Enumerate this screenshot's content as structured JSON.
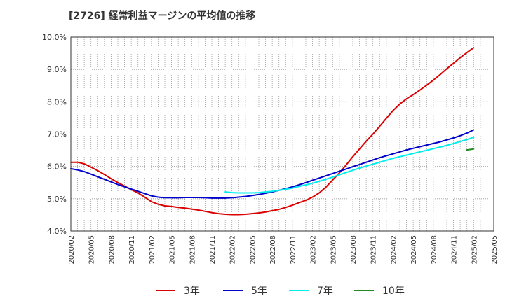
{
  "chart_data": {
    "type": "line",
    "title": "[2726]  経常利益マージンの平均値の推移",
    "xlabel": "",
    "ylabel": "",
    "ylim": [
      4.0,
      10.0
    ],
    "yticks": [
      "4.0%",
      "5.0%",
      "6.0%",
      "7.0%",
      "8.0%",
      "9.0%",
      "10.0%"
    ],
    "xticks": [
      "2020/02",
      "2020/05",
      "2020/08",
      "2020/11",
      "2021/02",
      "2021/05",
      "2021/08",
      "2021/11",
      "2022/02",
      "2022/05",
      "2022/08",
      "2022/11",
      "2023/02",
      "2023/05",
      "2023/08",
      "2023/11",
      "2024/02",
      "2024/05",
      "2024/08",
      "2024/11",
      "2025/02",
      "2025/05"
    ],
    "grid": true,
    "legend_position": "bottom",
    "series": [
      {
        "name": "3年",
        "color": "#dd0000",
        "points": [
          [
            "2020/02",
            6.13
          ],
          [
            "2020/03",
            6.13
          ],
          [
            "2020/04",
            6.08
          ],
          [
            "2020/05",
            5.98
          ],
          [
            "2020/06",
            5.87
          ],
          [
            "2020/07",
            5.75
          ],
          [
            "2020/08",
            5.62
          ],
          [
            "2020/09",
            5.5
          ],
          [
            "2020/10",
            5.39
          ],
          [
            "2020/11",
            5.28
          ],
          [
            "2020/12",
            5.18
          ],
          [
            "2021/01",
            5.05
          ],
          [
            "2021/02",
            4.91
          ],
          [
            "2021/03",
            4.83
          ],
          [
            "2021/04",
            4.78
          ],
          [
            "2021/05",
            4.76
          ],
          [
            "2021/06",
            4.73
          ],
          [
            "2021/07",
            4.71
          ],
          [
            "2021/08",
            4.68
          ],
          [
            "2021/09",
            4.65
          ],
          [
            "2021/10",
            4.61
          ],
          [
            "2021/11",
            4.57
          ],
          [
            "2021/12",
            4.54
          ],
          [
            "2022/01",
            4.52
          ],
          [
            "2022/02",
            4.51
          ],
          [
            "2022/03",
            4.51
          ],
          [
            "2022/04",
            4.52
          ],
          [
            "2022/05",
            4.54
          ],
          [
            "2022/06",
            4.56
          ],
          [
            "2022/07",
            4.59
          ],
          [
            "2022/08",
            4.63
          ],
          [
            "2022/09",
            4.67
          ],
          [
            "2022/10",
            4.73
          ],
          [
            "2022/11",
            4.8
          ],
          [
            "2022/12",
            4.88
          ],
          [
            "2023/01",
            4.95
          ],
          [
            "2023/02",
            5.05
          ],
          [
            "2023/03",
            5.18
          ],
          [
            "2023/04",
            5.36
          ],
          [
            "2023/05",
            5.58
          ],
          [
            "2023/06",
            5.8
          ],
          [
            "2023/07",
            6.04
          ],
          [
            "2023/08",
            6.3
          ],
          [
            "2023/09",
            6.54
          ],
          [
            "2023/10",
            6.78
          ],
          [
            "2023/11",
            7.0
          ],
          [
            "2023/12",
            7.24
          ],
          [
            "2024/01",
            7.49
          ],
          [
            "2024/02",
            7.73
          ],
          [
            "2024/03",
            7.93
          ],
          [
            "2024/04",
            8.09
          ],
          [
            "2024/05",
            8.22
          ],
          [
            "2024/06",
            8.36
          ],
          [
            "2024/07",
            8.51
          ],
          [
            "2024/08",
            8.67
          ],
          [
            "2024/09",
            8.84
          ],
          [
            "2024/10",
            9.02
          ],
          [
            "2024/11",
            9.19
          ],
          [
            "2024/12",
            9.36
          ],
          [
            "2025/01",
            9.52
          ],
          [
            "2025/02",
            9.67
          ]
        ]
      },
      {
        "name": "5年",
        "color": "#0000cc",
        "points": [
          [
            "2020/02",
            5.93
          ],
          [
            "2020/03",
            5.89
          ],
          [
            "2020/04",
            5.84
          ],
          [
            "2020/05",
            5.76
          ],
          [
            "2020/06",
            5.68
          ],
          [
            "2020/07",
            5.6
          ],
          [
            "2020/08",
            5.52
          ],
          [
            "2020/09",
            5.44
          ],
          [
            "2020/10",
            5.37
          ],
          [
            "2020/11",
            5.3
          ],
          [
            "2020/12",
            5.23
          ],
          [
            "2021/01",
            5.16
          ],
          [
            "2021/02",
            5.09
          ],
          [
            "2021/03",
            5.05
          ],
          [
            "2021/04",
            5.03
          ],
          [
            "2021/05",
            5.03
          ],
          [
            "2021/06",
            5.03
          ],
          [
            "2021/07",
            5.04
          ],
          [
            "2021/08",
            5.04
          ],
          [
            "2021/09",
            5.04
          ],
          [
            "2021/10",
            5.03
          ],
          [
            "2021/11",
            5.02
          ],
          [
            "2021/12",
            5.02
          ],
          [
            "2022/01",
            5.02
          ],
          [
            "2022/02",
            5.03
          ],
          [
            "2022/03",
            5.05
          ],
          [
            "2022/04",
            5.07
          ],
          [
            "2022/05",
            5.1
          ],
          [
            "2022/06",
            5.13
          ],
          [
            "2022/07",
            5.17
          ],
          [
            "2022/08",
            5.21
          ],
          [
            "2022/09",
            5.26
          ],
          [
            "2022/10",
            5.31
          ],
          [
            "2022/11",
            5.37
          ],
          [
            "2022/12",
            5.43
          ],
          [
            "2023/01",
            5.5
          ],
          [
            "2023/02",
            5.57
          ],
          [
            "2023/03",
            5.64
          ],
          [
            "2023/04",
            5.71
          ],
          [
            "2023/05",
            5.78
          ],
          [
            "2023/06",
            5.85
          ],
          [
            "2023/07",
            5.92
          ],
          [
            "2023/08",
            5.99
          ],
          [
            "2023/09",
            6.06
          ],
          [
            "2023/10",
            6.13
          ],
          [
            "2023/11",
            6.2
          ],
          [
            "2023/12",
            6.27
          ],
          [
            "2024/01",
            6.33
          ],
          [
            "2024/02",
            6.39
          ],
          [
            "2024/03",
            6.45
          ],
          [
            "2024/04",
            6.51
          ],
          [
            "2024/05",
            6.56
          ],
          [
            "2024/06",
            6.61
          ],
          [
            "2024/07",
            6.66
          ],
          [
            "2024/08",
            6.71
          ],
          [
            "2024/09",
            6.76
          ],
          [
            "2024/10",
            6.82
          ],
          [
            "2024/11",
            6.88
          ],
          [
            "2024/12",
            6.95
          ],
          [
            "2025/01",
            7.03
          ],
          [
            "2025/02",
            7.13
          ]
        ]
      },
      {
        "name": "7年",
        "color": "#00eeee",
        "points": [
          [
            "2022/01",
            5.21
          ],
          [
            "2022/02",
            5.19
          ],
          [
            "2022/03",
            5.18
          ],
          [
            "2022/04",
            5.18
          ],
          [
            "2022/05",
            5.18
          ],
          [
            "2022/06",
            5.19
          ],
          [
            "2022/07",
            5.21
          ],
          [
            "2022/08",
            5.23
          ],
          [
            "2022/09",
            5.26
          ],
          [
            "2022/10",
            5.29
          ],
          [
            "2022/11",
            5.33
          ],
          [
            "2022/12",
            5.38
          ],
          [
            "2023/01",
            5.43
          ],
          [
            "2023/02",
            5.48
          ],
          [
            "2023/03",
            5.54
          ],
          [
            "2023/04",
            5.6
          ],
          [
            "2023/05",
            5.67
          ],
          [
            "2023/06",
            5.74
          ],
          [
            "2023/07",
            5.81
          ],
          [
            "2023/08",
            5.88
          ],
          [
            "2023/09",
            5.95
          ],
          [
            "2023/10",
            6.01
          ],
          [
            "2023/11",
            6.07
          ],
          [
            "2023/12",
            6.13
          ],
          [
            "2024/01",
            6.19
          ],
          [
            "2024/02",
            6.25
          ],
          [
            "2024/03",
            6.3
          ],
          [
            "2024/04",
            6.35
          ],
          [
            "2024/05",
            6.4
          ],
          [
            "2024/06",
            6.45
          ],
          [
            "2024/07",
            6.5
          ],
          [
            "2024/08",
            6.55
          ],
          [
            "2024/09",
            6.6
          ],
          [
            "2024/10",
            6.65
          ],
          [
            "2024/11",
            6.71
          ],
          [
            "2024/12",
            6.77
          ],
          [
            "2025/01",
            6.83
          ],
          [
            "2025/02",
            6.9
          ]
        ]
      },
      {
        "name": "10年",
        "color": "#228822",
        "points": [
          [
            "2025/01",
            6.51
          ],
          [
            "2025/02",
            6.54
          ]
        ]
      }
    ]
  }
}
